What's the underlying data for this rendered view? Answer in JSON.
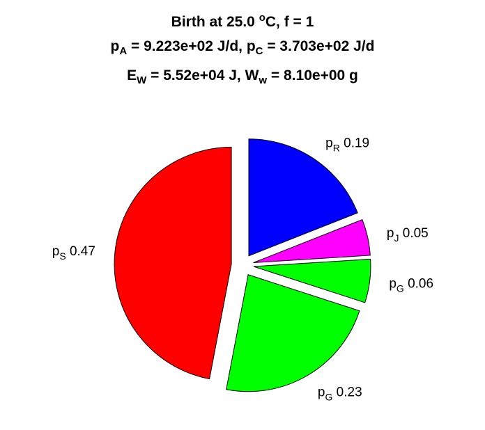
{
  "chart_data": {
    "type": "pie",
    "title": {
      "line1": {
        "text": "Birth at 25.0 ",
        "sup": "o",
        "rest": "C, f = 1"
      },
      "line2": [
        {
          "base": "p",
          "sub": "A",
          "rest": " = 9.223e+02 J/d, "
        },
        {
          "base": "p",
          "sub": "C",
          "rest": " = 3.703e+02 J/d"
        }
      ],
      "line3": [
        {
          "base": "E",
          "sub": "W",
          "rest": " = 5.52e+04 J, "
        },
        {
          "base": "W",
          "sub": "w",
          "rest": " = 8.10e+00 g"
        }
      ]
    },
    "slices": [
      {
        "base": "p",
        "sub": "R",
        "value": 0.19,
        "value_label": "0.19",
        "color": "#0000ff"
      },
      {
        "base": "p",
        "sub": "J",
        "value": 0.05,
        "value_label": "0.05",
        "color": "#ff00ff"
      },
      {
        "base": "p",
        "sub": "G",
        "value": 0.06,
        "value_label": "0.06",
        "color": "#00ff00"
      },
      {
        "base": "p",
        "sub": "G",
        "value": 0.23,
        "value_label": "0.23",
        "color": "#00ff00"
      },
      {
        "base": "p",
        "sub": "S",
        "value": 0.47,
        "value_label": "0.47",
        "color": "#ff0000"
      }
    ],
    "start_angle": "top",
    "direction": "clockwise",
    "exploded": true
  }
}
